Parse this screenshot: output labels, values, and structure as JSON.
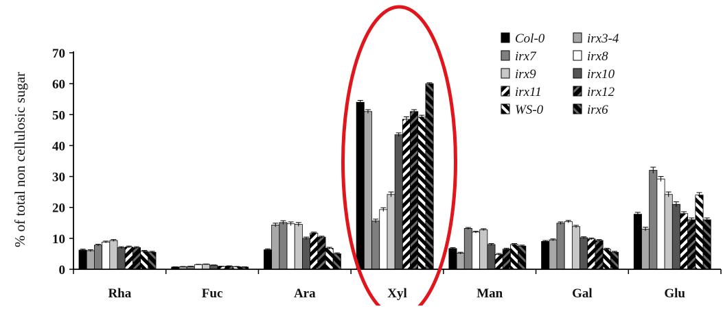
{
  "chart_data": {
    "type": "bar",
    "ylabel": "% of total non cellulosic sugar",
    "ylim": [
      0,
      70
    ],
    "yticks": [
      0,
      10,
      20,
      30,
      40,
      50,
      60,
      70
    ],
    "categories": [
      "Rha",
      "Fuc",
      "Ara",
      "Xyl",
      "Man",
      "Gal",
      "Glu"
    ],
    "legend_placement": "top-right",
    "highlight": {
      "category": "Xyl",
      "shape": "ellipse",
      "color": "#e0161c"
    },
    "series": [
      {
        "name": "Col-0",
        "color": "#000000",
        "pattern": "solid",
        "values": [
          6.2,
          0.7,
          6.3,
          54.0,
          6.7,
          9.0,
          17.8
        ],
        "errors": [
          0.3,
          0.1,
          0.3,
          0.6,
          0.3,
          0.3,
          0.6
        ]
      },
      {
        "name": "irx3-4",
        "color": "#a8a8a8",
        "pattern": "solid",
        "values": [
          6.0,
          0.8,
          14.3,
          51.0,
          5.2,
          9.5,
          13.0
        ],
        "errors": [
          0.3,
          0.1,
          0.6,
          0.6,
          0.3,
          0.3,
          0.6
        ]
      },
      {
        "name": "irx7",
        "color": "#7f7f7f",
        "pattern": "solid",
        "values": [
          7.8,
          0.9,
          15.1,
          15.6,
          13.2,
          14.9,
          32.0
        ],
        "errors": [
          0.3,
          0.1,
          0.6,
          0.6,
          0.3,
          0.4,
          1.0
        ]
      },
      {
        "name": "irx8",
        "color": "#ffffff",
        "pattern": "solid",
        "values": [
          8.8,
          1.5,
          14.7,
          19.3,
          12.0,
          15.4,
          29.2
        ],
        "errors": [
          0.3,
          0.1,
          0.6,
          0.6,
          0.3,
          0.4,
          0.8
        ]
      },
      {
        "name": "irx9",
        "color": "#c7c7c7",
        "pattern": "solid",
        "values": [
          9.3,
          1.6,
          14.5,
          24.2,
          12.8,
          13.8,
          24.2
        ],
        "errors": [
          0.3,
          0.1,
          0.6,
          0.8,
          0.3,
          0.4,
          0.8
        ]
      },
      {
        "name": "irx10",
        "color": "#555555",
        "pattern": "solid",
        "values": [
          7.0,
          1.3,
          10.0,
          43.5,
          8.0,
          10.2,
          21.0
        ],
        "errors": [
          0.3,
          0.1,
          0.4,
          0.6,
          0.3,
          0.3,
          0.8
        ]
      },
      {
        "name": "irx11",
        "color": "#000000",
        "pattern": "hatch-white",
        "values": [
          7.2,
          0.9,
          11.7,
          48.5,
          4.8,
          9.8,
          18.0
        ],
        "errors": [
          0.3,
          0.1,
          0.3,
          0.8,
          0.3,
          0.3,
          0.6
        ]
      },
      {
        "name": "irx12",
        "color": "#000000",
        "pattern": "hatch-dark",
        "values": [
          7.0,
          1.0,
          10.4,
          51.0,
          6.5,
          9.3,
          16.0
        ],
        "errors": [
          0.3,
          0.1,
          0.3,
          0.6,
          0.3,
          0.3,
          0.6
        ]
      },
      {
        "name": "WS-0",
        "color": "#000000",
        "pattern": "hatch-white-rev",
        "values": [
          5.8,
          0.8,
          6.8,
          49.2,
          8.0,
          6.5,
          24.0
        ],
        "errors": [
          0.3,
          0.1,
          0.3,
          0.6,
          0.3,
          0.3,
          0.8
        ]
      },
      {
        "name": "irx6",
        "color": "#000000",
        "pattern": "hatch-dark-rev",
        "values": [
          5.5,
          0.7,
          5.0,
          60.0,
          7.5,
          5.5,
          16.0
        ],
        "errors": [
          0.3,
          0.1,
          0.3,
          0.3,
          0.3,
          0.3,
          0.6
        ]
      }
    ]
  }
}
